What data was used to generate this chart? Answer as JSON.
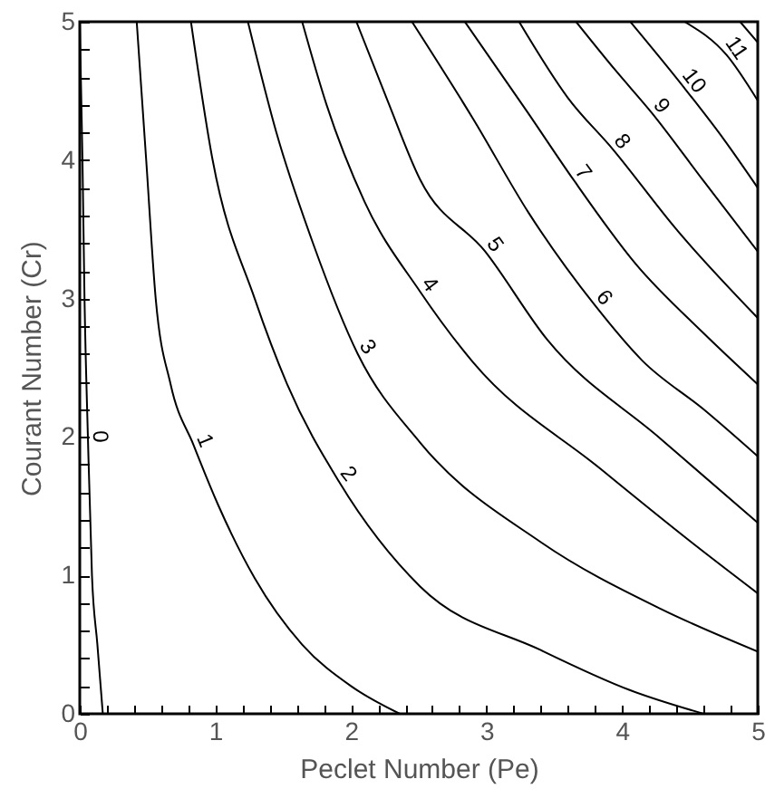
{
  "chart_data": {
    "type": "line",
    "xlabel": "Peclet Number (Pe)",
    "ylabel": "Courant Number (Cr)",
    "xlim": [
      0,
      5
    ],
    "ylim": [
      0,
      5
    ],
    "xticks": [
      0,
      {
        "value": 0.2,
        "label": null
      },
      {
        "value": 0.4,
        "label": null
      },
      {
        "value": 0.6,
        "label": null
      },
      {
        "value": 0.8,
        "label": null
      },
      1,
      {
        "value": 1.2,
        "label": null
      },
      {
        "value": 1.4,
        "label": null
      },
      {
        "value": 1.6,
        "label": null
      },
      {
        "value": 1.8,
        "label": null
      },
      2,
      {
        "value": 2.2,
        "label": null
      },
      {
        "value": 2.4,
        "label": null
      },
      {
        "value": 2.6,
        "label": null
      },
      {
        "value": 2.8,
        "label": null
      },
      3,
      {
        "value": 3.2,
        "label": null
      },
      {
        "value": 3.4,
        "label": null
      },
      {
        "value": 3.6,
        "label": null
      },
      {
        "value": 3.8,
        "label": null
      },
      4,
      {
        "value": 4.2,
        "label": null
      },
      {
        "value": 4.4,
        "label": null
      },
      {
        "value": 4.6,
        "label": null
      },
      {
        "value": 4.8,
        "label": null
      },
      5
    ],
    "yticks": [
      0,
      {
        "value": 0.2,
        "label": null
      },
      {
        "value": 0.4,
        "label": null
      },
      {
        "value": 0.6,
        "label": null
      },
      {
        "value": 0.8,
        "label": null
      },
      1,
      {
        "value": 1.2,
        "label": null
      },
      {
        "value": 1.4,
        "label": null
      },
      {
        "value": 1.6,
        "label": null
      },
      {
        "value": 1.8,
        "label": null
      },
      2,
      {
        "value": 2.2,
        "label": null
      },
      {
        "value": 2.4,
        "label": null
      },
      {
        "value": 2.6,
        "label": null
      },
      {
        "value": 2.8,
        "label": null
      },
      3,
      {
        "value": 3.2,
        "label": null
      },
      {
        "value": 3.4,
        "label": null
      },
      {
        "value": 3.6,
        "label": null
      },
      {
        "value": 3.8,
        "label": null
      },
      4,
      {
        "value": 4.2,
        "label": null
      },
      {
        "value": 4.4,
        "label": null
      },
      {
        "value": 4.6,
        "label": null
      },
      {
        "value": 4.8,
        "label": null
      },
      5
    ],
    "grid": false,
    "marker": "none",
    "line_style": "solid",
    "series": [
      {
        "name": "0",
        "color": "#000000",
        "x": [
          0.0,
          0.02,
          0.035,
          0.06,
          0.09,
          0.13,
          0.17
        ],
        "values": [
          5,
          4,
          3,
          2,
          1,
          0.5,
          0
        ]
      },
      {
        "name": "1",
        "color": "#000000",
        "x": [
          0.42,
          0.49,
          0.56,
          0.67,
          0.84,
          1.02,
          1.29,
          1.64,
          2.0,
          2.36
        ],
        "values": [
          5,
          4,
          3,
          2.38,
          1.94,
          1.51,
          0.98,
          0.5,
          0.2,
          0
        ]
      },
      {
        "name": "2",
        "color": "#000000",
        "x": [
          0.82,
          0.98,
          1.29,
          1.53,
          1.91,
          2.51,
          3.4,
          4.06,
          4.6
        ],
        "values": [
          5,
          4,
          3,
          2.38,
          1.68,
          0.92,
          0.46,
          0.17,
          0
        ]
      },
      {
        "name": "3",
        "color": "#000000",
        "x": [
          1.24,
          1.45,
          1.72,
          2.05,
          2.51,
          3.4,
          4.28,
          5
        ],
        "values": [
          5,
          4.2,
          3.4,
          2.6,
          1.96,
          1.24,
          0.76,
          0.45
        ]
      },
      {
        "name": "4",
        "color": "#000000",
        "x": [
          1.64,
          1.82,
          2.1,
          2.51,
          2.9,
          3.84,
          4.51,
          5
        ],
        "values": [
          5,
          4.4,
          3.7,
          3.05,
          2.54,
          1.77,
          1.24,
          0.87
        ]
      },
      {
        "name": "5",
        "color": "#000000",
        "x": [
          2.04,
          2.27,
          2.51,
          2.99,
          3.45,
          4.28,
          5
        ],
        "values": [
          5,
          4.43,
          3.86,
          3.34,
          2.7,
          1.99,
          1.38
        ]
      },
      {
        "name": "6",
        "color": "#000000",
        "x": [
          2.45,
          2.9,
          3.31,
          3.8,
          4.15,
          4.6,
          5
        ],
        "values": [
          5,
          4.3,
          3.62,
          2.95,
          2.55,
          2.2,
          1.86
        ]
      },
      {
        "name": "7",
        "color": "#000000",
        "x": [
          2.84,
          3.3,
          3.64,
          4.1,
          4.6,
          5
        ],
        "values": [
          5,
          4.35,
          3.86,
          3.25,
          2.75,
          2.38
        ]
      },
      {
        "name": "8",
        "color": "#000000",
        "x": [
          3.24,
          3.6,
          3.93,
          4.4,
          5
        ],
        "values": [
          5,
          4.45,
          4.08,
          3.5,
          2.86
        ]
      },
      {
        "name": "9",
        "color": "#000000",
        "x": [
          3.66,
          3.95,
          4.22,
          4.6,
          5
        ],
        "values": [
          5,
          4.65,
          4.34,
          3.85,
          3.34
        ]
      },
      {
        "name": "10",
        "color": "#000000",
        "x": [
          4.06,
          4.46,
          4.75,
          5
        ],
        "values": [
          5,
          4.52,
          4.15,
          3.8
        ]
      },
      {
        "name": "11",
        "color": "#000000",
        "x": [
          4.46,
          4.77,
          5
        ],
        "values": [
          5,
          4.76,
          4.43
        ]
      },
      {
        "color": "#000000",
        "x": [
          4.87,
          5
        ],
        "values": [
          5,
          4.85
        ]
      }
    ]
  }
}
